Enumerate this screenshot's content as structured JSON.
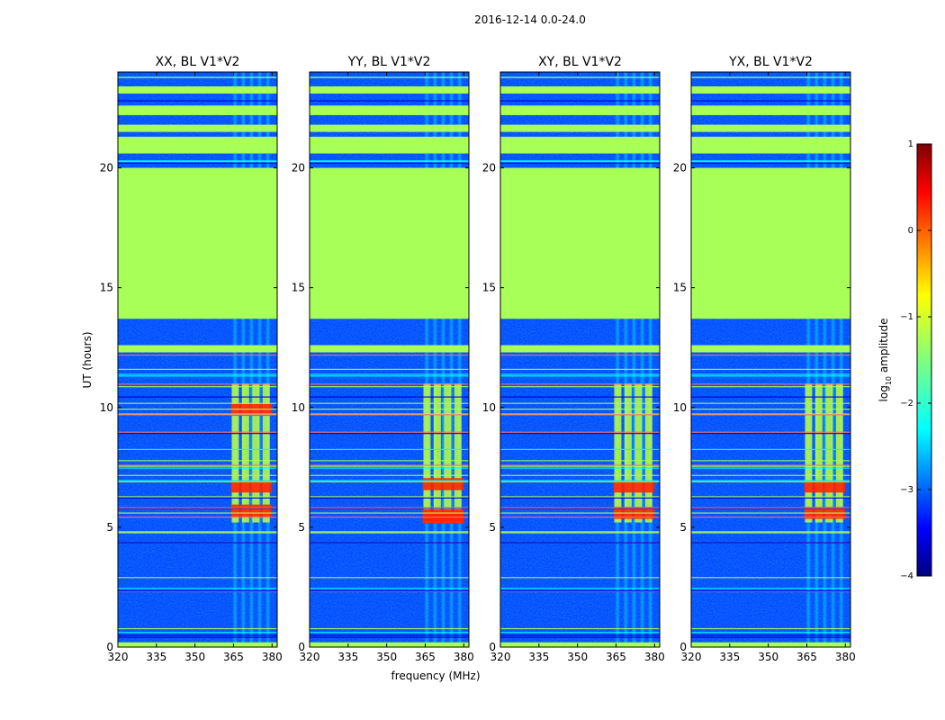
{
  "chart_data": {
    "type": "heatmap",
    "suptitle": "2016-12-14 0.0-24.0",
    "xlabel": "frequency (MHz)",
    "ylabel": "UT (hours)",
    "xlim": [
      320,
      382
    ],
    "ylim": [
      0,
      24
    ],
    "xticks": [
      "320",
      "335",
      "350",
      "365",
      "380"
    ],
    "xtick_values": [
      320,
      335,
      350,
      365,
      380
    ],
    "yticks": [
      "0",
      "5",
      "10",
      "15",
      "20"
    ],
    "ytick_values": [
      0,
      5,
      10,
      15,
      20
    ],
    "colorbar": {
      "label": "log10 amplitude",
      "label_main": "log",
      "label_sub": "10",
      "label_tail": " amplitude",
      "range": [
        -4,
        1
      ],
      "ticks": [
        "1",
        "0",
        "−1",
        "−2",
        "−3",
        "−4"
      ],
      "tick_values": [
        1,
        0,
        -1,
        -2,
        -3,
        -4
      ],
      "colormap": "jet",
      "colors": [
        "#00007f",
        "#0000ff",
        "#007fff",
        "#00ffff",
        "#7fff7f",
        "#ffff00",
        "#ff7f00",
        "#ff0000",
        "#7f0000"
      ]
    },
    "panels": [
      {
        "title": "XX, BL V1*V2",
        "rfi_band_mhz": [
          364,
          380
        ],
        "bright_rows_ut": [
          6.7,
          9.9,
          5.7
        ]
      },
      {
        "title": "YY, BL V1*V2",
        "rfi_band_mhz": [
          364,
          380
        ],
        "bright_rows_ut": [
          6.8,
          5.5,
          5.4
        ]
      },
      {
        "title": "XY, BL V1*V2",
        "rfi_band_mhz": [
          364,
          380
        ],
        "bright_rows_ut": [
          6.7,
          5.6
        ]
      },
      {
        "title": "YX, BL V1*V2",
        "rfi_band_mhz": [
          364,
          380
        ],
        "bright_rows_ut": [
          6.7,
          5.6
        ]
      }
    ],
    "flagged_constant_rows_ut": [
      [
        13.7,
        20.0
      ],
      [
        20.6,
        21.3
      ],
      [
        21.5,
        21.8
      ],
      [
        22.2,
        22.6
      ],
      [
        23.1,
        23.4
      ],
      [
        12.3,
        12.6
      ],
      [
        0.0,
        0.2
      ]
    ],
    "series": [
      {
        "name": "background_log10_amplitude",
        "values": [
          -3.0
        ]
      },
      {
        "name": "flagged_region_log10_amplitude",
        "values": [
          -1.3
        ]
      },
      {
        "name": "rfi_peak_log10_amplitude",
        "values": [
          0.2
        ]
      }
    ]
  }
}
